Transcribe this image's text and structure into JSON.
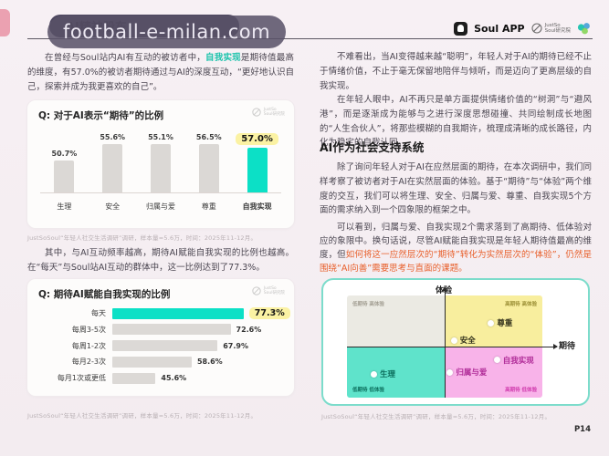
{
  "watermark_text": "football-e-milan.com",
  "header": {
    "title_tab": "AI精神股东",
    "soul_app_label": "Soul APP",
    "institute_line1": "JustSo",
    "institute_line2": "Soul研究院",
    "page_number": "P14"
  },
  "left_column": {
    "para1_pre": "在曾经与Soul站内AI有互动的被访者中，",
    "para1_highlight": "自我实现",
    "para1_post": "是期待值最高的维度，有57.0%的被访者期待通过与AI的深度互动，“更好地认识自己，探索并成为我更喜欢的自己”。",
    "para2": "其中，与AI互动频率越高，期待AI赋能自我实现的比例也越高。在“每天”与Soul站AI互动的群体中，这一比例达到了77.3%。"
  },
  "right_column": {
    "para3": "不难看出，当AI变得越来越“聪明”，年轻人对于AI的期待已经不止于情绪价值，不止于毫无保留地陪伴与倾听，而是迈向了更高层级的自我实现。",
    "para4": "在年轻人眼中，AI不再只是单方面提供情绪价值的“树洞”与“避风港”，而是逐渐成为能够与之进行深度思想碰撞、共同绘制成长地图的“人生合伙人”，将那些模糊的自我期许，梳理成清晰的成长路径，内化为稳定的自我认同。",
    "section_heading": "AI作为社会支持系统",
    "para5": "除了询问年轻人对于AI在应然层面的期待，在本次调研中，我们同样考察了被访者对于AI在实然层面的体验。基于“期待”与“体验”两个维度的交互，我们可以将生理、安全、归属与爱、尊重、自我实现5个方面的需求纳入到一个四象限的框架之中。",
    "para6_pre": "可以看到，归属与爱、自我实现2个需求落到了高期待、低体验对应的象限中。换句话说，尽管AI赋能自我实现是年轻人期待值最高的维度，但",
    "para6_highlight": "如何将这一应然层次的“期待”转化为实然层次的“体验”，仍然是围绕“AI向善”需要思考与直面的课题。"
  },
  "colors": {
    "accent_teal": "#0ce0c6",
    "highlight_yellow": "#fbf2a3",
    "highlight_text_teal": "#1fc4ad",
    "highlight_text_orange": "#e8602c",
    "quadrant_border": "#7cdccb"
  },
  "chart_data": [
    {
      "type": "bar",
      "orientation": "vertical",
      "title": "Q: 对于AI表示“期待”的比例",
      "categories": [
        "生理",
        "安全",
        "归属与爱",
        "尊重",
        "自我实现"
      ],
      "values": [
        50.7,
        55.6,
        55.1,
        56.5,
        57.0
      ],
      "unit": "%",
      "highlight_index": 4,
      "value_axis_range": [
        42,
        58
      ],
      "source": "JustSoSoul“年轻人社交生活调研”调研，样本量=5.6万，时间：2025年11-12月。"
    },
    {
      "type": "bar",
      "orientation": "horizontal",
      "title": "Q: 期待AI赋能自我实现的比例",
      "categories": [
        "每天",
        "每周3-5次",
        "每周1-2次",
        "每月2-3次",
        "每月1次或更低"
      ],
      "values": [
        77.3,
        72.6,
        67.9,
        58.6,
        45.6
      ],
      "unit": "%",
      "highlight_index": 0,
      "value_axis_range": [
        30,
        80
      ],
      "source": "JustSoSoul“年轻人社交生活调研”调研，样本量=5.6万，时间：2025年11-12月。"
    },
    {
      "type": "scatter",
      "subtype": "quadrant",
      "x_axis_label": "期待",
      "y_axis_label": "体验",
      "quadrants": {
        "top_left": {
          "label": "低期待 高体验",
          "bg": "#ebeae3",
          "label_color": "#a29e92"
        },
        "top_right": {
          "label": "高期待 高体验",
          "bg": "#f8ee9e",
          "label_color": "#9c9036"
        },
        "bottom_left": {
          "label": "低期待 低体验",
          "bg": "#5fe3cb",
          "label_color": "#0b6e5c"
        },
        "bottom_right": {
          "label": "高期待 低体验",
          "bg": "#f8b3e9",
          "label_color": "#d13cae"
        }
      },
      "points": [
        {
          "name": "生理",
          "x_pct": 14,
          "y_pct": 77,
          "color": "#0b6e5c"
        },
        {
          "name": "安全",
          "x_pct": 55,
          "y_pct": 44,
          "color": "#33321c"
        },
        {
          "name": "尊重",
          "x_pct": 74,
          "y_pct": 27,
          "color": "#33321c"
        },
        {
          "name": "归属与爱",
          "x_pct": 53,
          "y_pct": 75,
          "color": "#b02c98"
        },
        {
          "name": "自我实现",
          "x_pct": 77,
          "y_pct": 63,
          "color": "#b02c98"
        }
      ],
      "source": "JustSoSoul“年轻人社交生活调研”调研，样本量=5.6万，时间：2025年11-12月。"
    }
  ]
}
